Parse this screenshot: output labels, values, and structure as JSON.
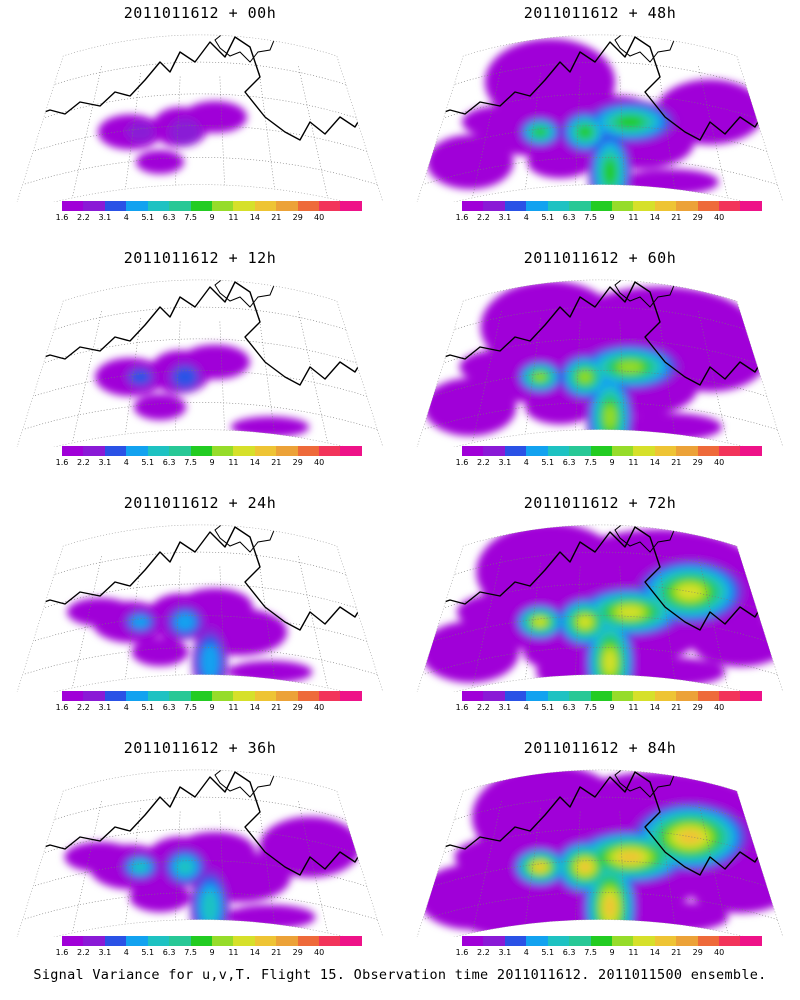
{
  "colorbar": {
    "labels": [
      "1.6",
      "2.2",
      "3.1",
      "4",
      "5.1",
      "6.3",
      "7.5",
      "9",
      "11",
      "14",
      "21",
      "29",
      "40"
    ],
    "colors": [
      "#a000d8",
      "#8a1ad6",
      "#2a52e6",
      "#12a2f0",
      "#1ec2c2",
      "#28c896",
      "#22cc22",
      "#96dc2a",
      "#d6e02a",
      "#eec434",
      "#eca238",
      "#ee6a3a",
      "#f2345a",
      "#ee1288"
    ]
  },
  "panels": [
    {
      "id": "p00",
      "title": "2011011612 + 00h",
      "lead": 0
    },
    {
      "id": "p48",
      "title": "2011011612 + 48h",
      "lead": 48
    },
    {
      "id": "p12",
      "title": "2011011612 + 12h",
      "lead": 12
    },
    {
      "id": "p60",
      "title": "2011011612 + 60h",
      "lead": 60
    },
    {
      "id": "p24",
      "title": "2011011612 + 24h",
      "lead": 24
    },
    {
      "id": "p72",
      "title": "2011011612 + 72h",
      "lead": 72
    },
    {
      "id": "p36",
      "title": "2011011612 + 36h",
      "lead": 36
    },
    {
      "id": "p84",
      "title": "2011011612 + 84h",
      "lead": 84
    }
  ],
  "footer": "Signal Variance for u,v,T. Flight 15. Observation time 2011011612. 2011011500 ensemble."
}
